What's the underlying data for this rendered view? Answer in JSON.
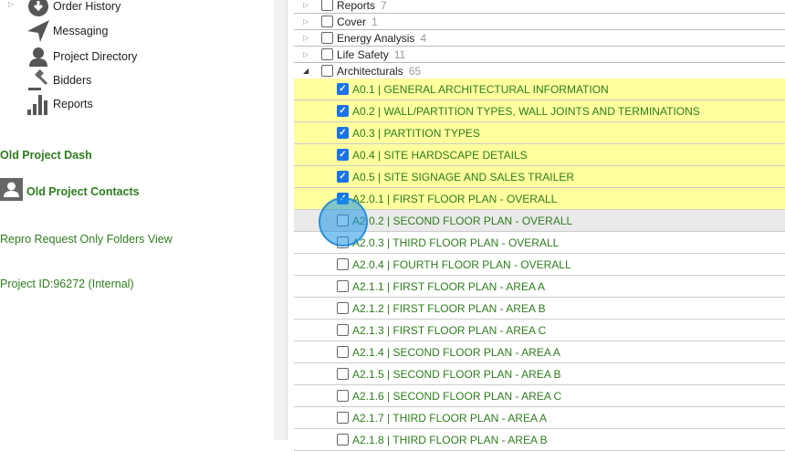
{
  "sidebar": {
    "items": [
      {
        "label": "Order History",
        "icon": "download-circle-icon"
      },
      {
        "label": "Messaging",
        "icon": "paper-plane-icon"
      },
      {
        "label": "Project Directory",
        "icon": "person-icon"
      },
      {
        "label": "Bidders",
        "icon": "gavel-icon"
      },
      {
        "label": "Reports",
        "icon": "bar-chart-icon"
      }
    ],
    "old_project_dash": "Old Project Dash",
    "old_project_contacts": "Old Project Contacts",
    "repro_request": "Repro Request Only Folders View",
    "project_id": "Project ID:96272 (Internal)"
  },
  "folders": [
    {
      "name": "Reports",
      "count": "7",
      "expanded": false
    },
    {
      "name": "Cover",
      "count": "1",
      "expanded": false
    },
    {
      "name": "Energy Analysis",
      "count": "4",
      "expanded": false
    },
    {
      "name": "Life Safety",
      "count": "11",
      "expanded": false
    },
    {
      "name": "Architecturals",
      "count": "65",
      "expanded": true
    }
  ],
  "sheets": [
    {
      "label": "A0.1 | GENERAL ARCHITECTURAL INFORMATION",
      "checked": true
    },
    {
      "label": "A0.2 | WALL/PARTITION TYPES, WALL JOINTS AND TERMINATIONS",
      "checked": true
    },
    {
      "label": "A0.3 | PARTITION TYPES",
      "checked": true
    },
    {
      "label": "A0.4 | SITE HARDSCAPE DETAILS",
      "checked": true
    },
    {
      "label": "A0.5 | SITE SIGNAGE AND SALES TRAILER",
      "checked": true
    },
    {
      "label": "A2.0.1 | FIRST FLOOR PLAN - OVERALL",
      "checked": true
    },
    {
      "label": "A2.0.2 | SECOND FLOOR PLAN - OVERALL",
      "checked": false
    },
    {
      "label": "A2.0.3 | THIRD FLOOR PLAN - OVERALL",
      "checked": false
    },
    {
      "label": "A2.0.4 | FOURTH FLOOR PLAN - OVERALL",
      "checked": false
    },
    {
      "label": "A2.1.1 | FIRST FLOOR PLAN - AREA A",
      "checked": false
    },
    {
      "label": "A2.1.2 | FIRST FLOOR PLAN - AREA B",
      "checked": false
    },
    {
      "label": "A2.1.3 | FIRST FLOOR PLAN - AREA C",
      "checked": false
    },
    {
      "label": "A2.1.4 | SECOND FLOOR PLAN - AREA A",
      "checked": false
    },
    {
      "label": "A2.1.5 | SECOND FLOOR PLAN - AREA B",
      "checked": false
    },
    {
      "label": "A2.1.6 | SECOND FLOOR PLAN - AREA C",
      "checked": false
    },
    {
      "label": "A2.1.7 | THIRD FLOOR PLAN - AREA A",
      "checked": false
    },
    {
      "label": "A2.1.8 | THIRD FLOOR PLAN - AREA B",
      "checked": false
    }
  ],
  "colors": {
    "selected_row": "#ffff9e",
    "link_green": "#2e7d1e",
    "checkbox_blue": "#1a73e8"
  }
}
